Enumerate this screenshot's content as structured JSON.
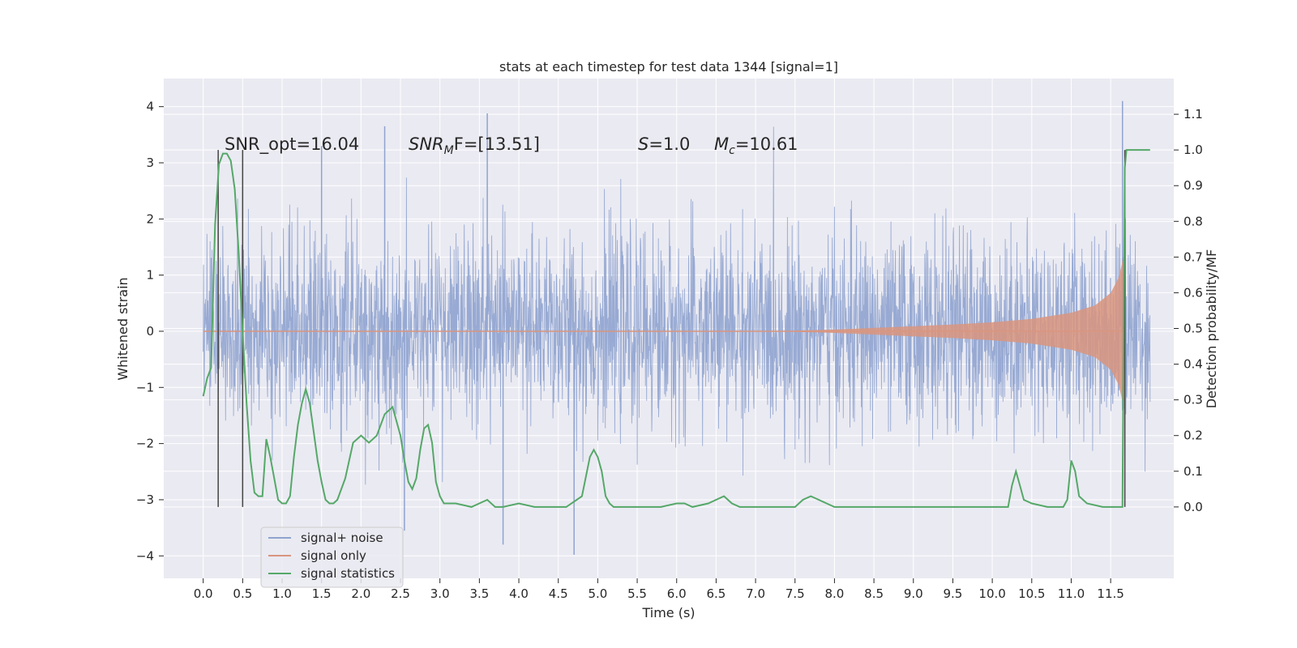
{
  "chart_data": {
    "type": "line",
    "title": "stats at each timestep for test data 1344 [signal=1]",
    "xlabel": "Time (s)",
    "ylabel": "Whitened strain",
    "ylabel_right": "Detection probability/MF",
    "xlim": [
      -0.5,
      12.3
    ],
    "ylim": [
      -4.4,
      4.5
    ],
    "ylim_right": [
      -0.2,
      1.2
    ],
    "x_ticks": [
      "0.0",
      "0.5",
      "1.0",
      "1.5",
      "2.0",
      "2.5",
      "3.0",
      "3.5",
      "4.0",
      "4.5",
      "5.0",
      "5.5",
      "6.0",
      "6.5",
      "7.0",
      "7.5",
      "8.0",
      "8.5",
      "9.0",
      "9.5",
      "10.0",
      "10.5",
      "11.0",
      "11.5"
    ],
    "y_ticks": [
      "4",
      "3",
      "2",
      "1",
      "0",
      "−1",
      "−2",
      "−3",
      "−4"
    ],
    "y_ticks_right": [
      "1.1",
      "1.0",
      "0.9",
      "0.8",
      "0.7",
      "0.6",
      "0.5",
      "0.4",
      "0.3",
      "0.2",
      "0.1",
      "0.0"
    ],
    "grid": true,
    "legend_position": "lower-left",
    "annotations": {
      "snr_opt": "SNR_opt=16.04",
      "snr_mf_sym": "SNR",
      "snr_mf_sub": "M",
      "snr_mf_rest": "F=[13.51]",
      "s_sym": "S",
      "s_rest": "=1.0",
      "mc_sym": "M",
      "mc_sub": "c",
      "mc_rest": "=10.61"
    },
    "vertical_markers_x": [
      0.19,
      0.5,
      11.68
    ],
    "series": [
      {
        "name": "signal+ noise",
        "color": "#8fa3cf",
        "axis": "left",
        "kind": "noise-band",
        "x_range": [
          0.0,
          12.0
        ],
        "mean": 0.0,
        "std": 0.85,
        "observed_extremes": {
          "max": 4.1,
          "min": -3.98
        }
      },
      {
        "name": "signal only",
        "color": "#d9957e",
        "axis": "left",
        "kind": "chirp-envelope",
        "x": [
          7.5,
          8.0,
          8.5,
          9.0,
          9.5,
          10.0,
          10.5,
          11.0,
          11.3,
          11.5,
          11.6,
          11.66,
          11.68
        ],
        "amplitude": [
          0.01,
          0.03,
          0.06,
          0.09,
          0.12,
          0.16,
          0.22,
          0.33,
          0.46,
          0.68,
          0.95,
          1.3,
          1.45
        ]
      },
      {
        "name": "signal statistics",
        "color": "#55a868",
        "axis": "right",
        "kind": "line",
        "x": [
          0.0,
          0.05,
          0.1,
          0.15,
          0.2,
          0.25,
          0.3,
          0.35,
          0.4,
          0.45,
          0.5,
          0.55,
          0.6,
          0.65,
          0.7,
          0.75,
          0.8,
          0.85,
          0.9,
          0.95,
          1.0,
          1.05,
          1.1,
          1.15,
          1.2,
          1.25,
          1.3,
          1.35,
          1.4,
          1.45,
          1.5,
          1.55,
          1.6,
          1.65,
          1.7,
          1.8,
          1.9,
          2.0,
          2.1,
          2.2,
          2.3,
          2.4,
          2.5,
          2.55,
          2.6,
          2.65,
          2.7,
          2.75,
          2.8,
          2.85,
          2.9,
          2.95,
          3.0,
          3.05,
          3.1,
          3.2,
          3.4,
          3.6,
          3.7,
          3.8,
          4.0,
          4.2,
          4.4,
          4.6,
          4.8,
          4.9,
          4.95,
          5.0,
          5.05,
          5.1,
          5.15,
          5.2,
          5.3,
          5.5,
          5.8,
          6.0,
          6.1,
          6.2,
          6.4,
          6.5,
          6.6,
          6.7,
          6.8,
          7.0,
          7.5,
          7.6,
          7.7,
          7.8,
          7.9,
          8.0,
          8.5,
          9.0,
          9.2,
          9.5,
          10.0,
          10.2,
          10.25,
          10.3,
          10.35,
          10.4,
          10.5,
          10.7,
          10.9,
          10.95,
          11.0,
          11.05,
          11.1,
          11.2,
          11.4,
          11.5,
          11.6,
          11.65,
          11.68,
          11.7,
          11.72,
          11.75,
          11.8,
          11.85,
          11.9,
          11.95,
          12.0
        ],
        "values": [
          0.31,
          0.36,
          0.39,
          0.79,
          0.96,
          0.99,
          0.99,
          0.97,
          0.89,
          0.71,
          0.49,
          0.29,
          0.13,
          0.04,
          0.03,
          0.03,
          0.19,
          0.14,
          0.08,
          0.02,
          0.01,
          0.01,
          0.03,
          0.14,
          0.23,
          0.29,
          0.33,
          0.29,
          0.21,
          0.13,
          0.07,
          0.02,
          0.01,
          0.01,
          0.02,
          0.08,
          0.18,
          0.2,
          0.18,
          0.2,
          0.26,
          0.28,
          0.2,
          0.13,
          0.07,
          0.05,
          0.08,
          0.16,
          0.22,
          0.23,
          0.18,
          0.07,
          0.03,
          0.01,
          0.01,
          0.01,
          0.0,
          0.02,
          0.0,
          0.0,
          0.01,
          0.0,
          0.0,
          0.0,
          0.03,
          0.14,
          0.16,
          0.14,
          0.1,
          0.03,
          0.01,
          0.0,
          0.0,
          0.0,
          0.0,
          0.01,
          0.01,
          0.0,
          0.01,
          0.02,
          0.03,
          0.01,
          0.0,
          0.0,
          0.0,
          0.02,
          0.03,
          0.02,
          0.01,
          0.0,
          0.0,
          0.0,
          0.0,
          0.0,
          0.0,
          0.0,
          0.06,
          0.1,
          0.06,
          0.02,
          0.01,
          0.0,
          0.0,
          0.02,
          0.13,
          0.1,
          0.03,
          0.01,
          0.0,
          0.0,
          0.0,
          0.0,
          0.95,
          1.0,
          1.0,
          1.0,
          1.0,
          1.0,
          1.0,
          1.0,
          1.0
        ]
      }
    ]
  }
}
